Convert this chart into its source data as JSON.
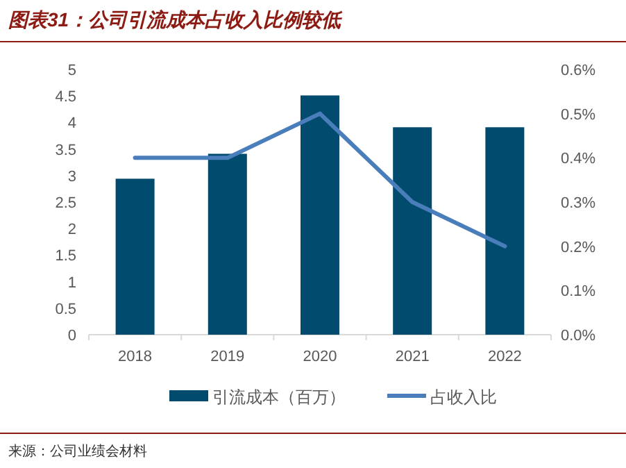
{
  "chart_data": {
    "type": "bar",
    "title": "图表31：公司引流成本占收入比例较低",
    "categories": [
      "2018",
      "2019",
      "2020",
      "2021",
      "2022"
    ],
    "series": [
      {
        "name": "引流成本（百万）",
        "color": "#004b6e",
        "values": [
          2.94,
          3.41,
          4.51,
          3.91,
          3.91
        ]
      },
      {
        "name": "占收入比",
        "type": "line",
        "axis": "y2",
        "color": "#4a7ebb",
        "values": [
          0.4,
          0.4,
          0.5,
          0.3,
          0.2
        ]
      }
    ],
    "ylim": [
      0,
      5
    ],
    "yticks": [
      0,
      0.5,
      1,
      1.5,
      2,
      2.5,
      3,
      3.5,
      4,
      4.5,
      5
    ],
    "y2lim": [
      0,
      0.6
    ],
    "y2ticks": [
      {
        "value": 0,
        "label": "0.0%"
      },
      {
        "value": 0.1,
        "label": "0.1%"
      },
      {
        "value": 0.2,
        "label": "0.2%"
      },
      {
        "value": 0.3,
        "label": "0.3%"
      },
      {
        "value": 0.4,
        "label": "0.4%"
      },
      {
        "value": 0.5,
        "label": "0.5%"
      },
      {
        "value": 0.6,
        "label": "0.6%"
      }
    ],
    "grid": false,
    "legend": "bottom",
    "annotations": [
      "来源：公司业绩会材料"
    ]
  }
}
